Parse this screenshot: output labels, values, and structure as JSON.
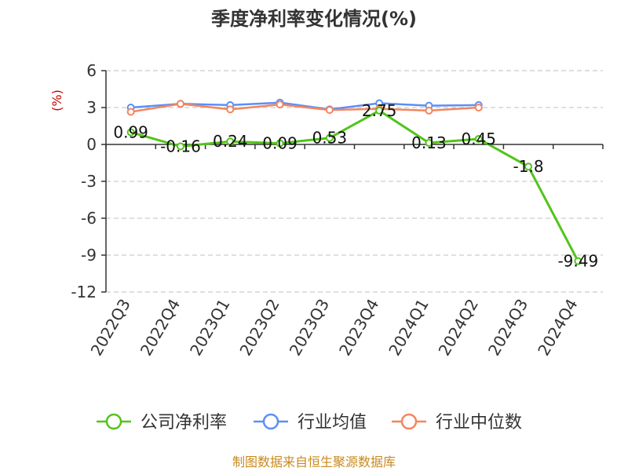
{
  "chart_data": {
    "type": "line",
    "title": "季度净利率变化情况(%)",
    "unit_label": "(%)",
    "categories": [
      "2022Q3",
      "2022Q4",
      "2023Q1",
      "2023Q2",
      "2023Q3",
      "2023Q4",
      "2024Q1",
      "2024Q2",
      "2024Q3",
      "2024Q4"
    ],
    "yticks": [
      6,
      3,
      0,
      -3,
      -6,
      -9,
      -12
    ],
    "ylim": [
      -12,
      6
    ],
    "grid": true,
    "legend_position": "bottom",
    "series": [
      {
        "name": "公司净利率",
        "color": "#52c41a",
        "values": [
          0.99,
          -0.16,
          0.24,
          0.09,
          0.53,
          2.75,
          0.13,
          0.45,
          -1.8,
          -9.49
        ],
        "labels": [
          "0.99",
          "-0.16",
          "0.24",
          "0.09",
          "0.53",
          "2.75",
          "0.13",
          "0.45",
          "-1.8",
          "-9.49"
        ]
      },
      {
        "name": "行业均值",
        "color": "#5b8ff9",
        "values": [
          3.0,
          3.3,
          3.2,
          3.4,
          2.85,
          3.35,
          3.15,
          3.2,
          null,
          null
        ]
      },
      {
        "name": "行业中位数",
        "color": "#f4855e",
        "values": [
          2.65,
          3.3,
          2.85,
          3.25,
          2.8,
          2.9,
          2.75,
          3.0,
          null,
          null
        ]
      }
    ]
  },
  "source": "制图数据来自恒生聚源数据库"
}
